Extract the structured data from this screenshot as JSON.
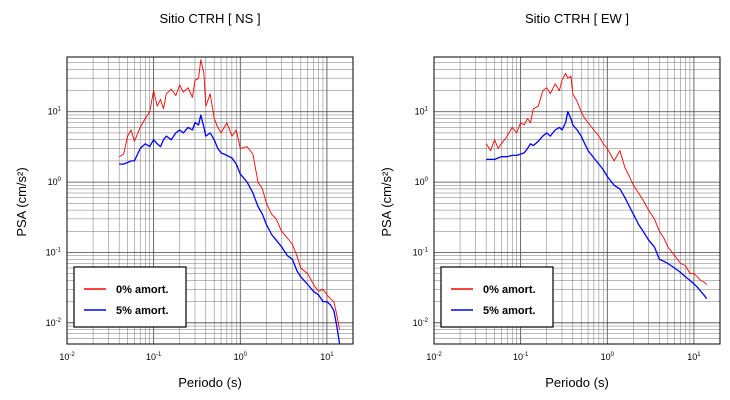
{
  "chart_data": [
    {
      "type": "line",
      "title": "Sitio CTRH [ NS ]",
      "xlabel": "Periodo (s)",
      "ylabel": "PSA (cm/s²)",
      "xscale": "log",
      "yscale": "log",
      "xlim": [
        0.01,
        20
      ],
      "ylim": [
        0.005,
        60
      ],
      "xtick_labels": [
        {
          "base": "10",
          "exp": "-2"
        },
        {
          "base": "10",
          "exp": "-1"
        },
        {
          "base": "10",
          "exp": "0"
        },
        {
          "base": "10",
          "exp": "1"
        }
      ],
      "ytick_labels": [
        {
          "base": "10",
          "exp": "-2"
        },
        {
          "base": "10",
          "exp": "-1"
        },
        {
          "base": "10",
          "exp": "0"
        },
        {
          "base": "10",
          "exp": "1"
        }
      ],
      "grid": true,
      "legend": "bottom-left",
      "series": [
        {
          "name": "0% amort.",
          "color": "#ff0000",
          "x": [
            0.04,
            0.045,
            0.05,
            0.055,
            0.06,
            0.07,
            0.08,
            0.09,
            0.1,
            0.11,
            0.12,
            0.13,
            0.14,
            0.16,
            0.18,
            0.2,
            0.22,
            0.25,
            0.28,
            0.3,
            0.33,
            0.35,
            0.38,
            0.4,
            0.45,
            0.5,
            0.55,
            0.6,
            0.7,
            0.8,
            0.9,
            1.0,
            1.2,
            1.4,
            1.6,
            1.8,
            2.0,
            2.3,
            2.6,
            3.0,
            3.5,
            4.0,
            4.5,
            5.0,
            6.0,
            7.0,
            8.0,
            9.0,
            10.0,
            11.0,
            12.0,
            13.0,
            14.0
          ],
          "y": [
            2.3,
            2.5,
            4.5,
            5.5,
            3.8,
            6.0,
            8.0,
            10.0,
            20.0,
            12.0,
            15.0,
            11.0,
            18.0,
            21.0,
            17.0,
            24.0,
            19.0,
            22.0,
            16.0,
            28.0,
            30.0,
            55.0,
            35.0,
            12.0,
            18.0,
            8.0,
            6.0,
            5.0,
            7.0,
            4.5,
            5.5,
            3.0,
            3.2,
            2.5,
            1.0,
            0.8,
            0.5,
            0.35,
            0.3,
            0.2,
            0.16,
            0.13,
            0.09,
            0.06,
            0.05,
            0.035,
            0.028,
            0.03,
            0.025,
            0.022,
            0.02,
            0.013,
            0.008
          ]
        },
        {
          "name": "5% amort.",
          "color": "#0000ff",
          "x": [
            0.04,
            0.045,
            0.05,
            0.055,
            0.06,
            0.07,
            0.08,
            0.09,
            0.1,
            0.11,
            0.12,
            0.13,
            0.14,
            0.16,
            0.18,
            0.2,
            0.22,
            0.25,
            0.28,
            0.3,
            0.33,
            0.35,
            0.38,
            0.4,
            0.45,
            0.5,
            0.55,
            0.6,
            0.7,
            0.8,
            0.9,
            1.0,
            1.2,
            1.4,
            1.6,
            1.8,
            2.0,
            2.3,
            2.6,
            3.0,
            3.5,
            4.0,
            4.5,
            5.0,
            6.0,
            7.0,
            8.0,
            9.0,
            10.0,
            11.0,
            12.0,
            13.0,
            14.0
          ],
          "y": [
            1.8,
            1.8,
            1.9,
            2.0,
            2.0,
            3.0,
            3.5,
            3.2,
            4.0,
            3.5,
            3.2,
            4.0,
            4.5,
            4.0,
            5.0,
            5.5,
            5.0,
            6.0,
            5.5,
            7.0,
            6.5,
            9.0,
            6.0,
            4.5,
            5.0,
            4.0,
            3.0,
            2.6,
            2.4,
            2.2,
            1.8,
            1.3,
            1.0,
            0.7,
            0.45,
            0.35,
            0.25,
            0.18,
            0.15,
            0.12,
            0.09,
            0.08,
            0.055,
            0.045,
            0.035,
            0.028,
            0.025,
            0.02,
            0.02,
            0.018,
            0.015,
            0.009,
            0.005
          ]
        }
      ]
    },
    {
      "type": "line",
      "title": "Sitio CTRH [ EW ]",
      "xlabel": "Periodo (s)",
      "ylabel": "PSA (cm/s²)",
      "xscale": "log",
      "yscale": "log",
      "xlim": [
        0.01,
        20
      ],
      "ylim": [
        0.005,
        60
      ],
      "xtick_labels": [
        {
          "base": "10",
          "exp": "-2"
        },
        {
          "base": "10",
          "exp": "-1"
        },
        {
          "base": "10",
          "exp": "0"
        },
        {
          "base": "10",
          "exp": "1"
        }
      ],
      "ytick_labels": [
        {
          "base": "10",
          "exp": "-2"
        },
        {
          "base": "10",
          "exp": "-1"
        },
        {
          "base": "10",
          "exp": "0"
        },
        {
          "base": "10",
          "exp": "1"
        }
      ],
      "grid": true,
      "legend": "bottom-left",
      "series": [
        {
          "name": "0% amort.",
          "color": "#ff0000",
          "x": [
            0.04,
            0.045,
            0.05,
            0.055,
            0.06,
            0.07,
            0.08,
            0.09,
            0.1,
            0.11,
            0.12,
            0.13,
            0.14,
            0.16,
            0.18,
            0.2,
            0.22,
            0.25,
            0.28,
            0.3,
            0.33,
            0.35,
            0.38,
            0.4,
            0.45,
            0.5,
            0.55,
            0.6,
            0.7,
            0.8,
            0.9,
            1.0,
            1.2,
            1.4,
            1.6,
            1.8,
            2.0,
            2.3,
            2.6,
            3.0,
            3.5,
            4.0,
            4.5,
            5.0,
            6.0,
            7.0,
            8.0,
            9.0,
            10.0,
            11.0,
            12.0,
            13.0,
            14.0
          ],
          "y": [
            3.5,
            2.8,
            4.0,
            3.0,
            3.5,
            4.5,
            6.0,
            5.0,
            7.0,
            6.5,
            8.0,
            7.0,
            11.0,
            12.0,
            20.0,
            22.0,
            18.0,
            25.0,
            20.0,
            28.0,
            35.0,
            30.0,
            32.0,
            18.0,
            14.0,
            10.0,
            8.0,
            7.0,
            5.5,
            4.5,
            3.5,
            3.0,
            2.0,
            2.8,
            1.6,
            1.2,
            0.9,
            0.7,
            0.55,
            0.4,
            0.3,
            0.2,
            0.16,
            0.12,
            0.09,
            0.07,
            0.065,
            0.05,
            0.05,
            0.045,
            0.04,
            0.038,
            0.035
          ]
        },
        {
          "name": "5% amort.",
          "color": "#0000ff",
          "x": [
            0.04,
            0.045,
            0.05,
            0.055,
            0.06,
            0.07,
            0.08,
            0.09,
            0.1,
            0.11,
            0.12,
            0.13,
            0.14,
            0.16,
            0.18,
            0.2,
            0.22,
            0.25,
            0.28,
            0.3,
            0.33,
            0.35,
            0.38,
            0.4,
            0.45,
            0.5,
            0.55,
            0.6,
            0.7,
            0.8,
            0.9,
            1.0,
            1.2,
            1.4,
            1.6,
            1.8,
            2.0,
            2.3,
            2.6,
            3.0,
            3.5,
            4.0,
            4.5,
            5.0,
            6.0,
            7.0,
            8.0,
            9.0,
            10.0,
            11.0,
            12.0,
            13.0,
            14.0
          ],
          "y": [
            2.1,
            2.1,
            2.1,
            2.2,
            2.3,
            2.3,
            2.4,
            2.4,
            2.5,
            2.6,
            3.0,
            3.5,
            3.3,
            3.8,
            4.5,
            5.0,
            4.5,
            5.5,
            6.0,
            5.5,
            7.0,
            10.0,
            8.0,
            6.5,
            5.5,
            4.5,
            3.5,
            2.8,
            2.2,
            1.8,
            1.5,
            1.2,
            0.9,
            0.8,
            0.6,
            0.45,
            0.35,
            0.25,
            0.2,
            0.15,
            0.12,
            0.08,
            0.075,
            0.07,
            0.06,
            0.052,
            0.045,
            0.04,
            0.036,
            0.032,
            0.028,
            0.025,
            0.022
          ]
        }
      ]
    }
  ]
}
